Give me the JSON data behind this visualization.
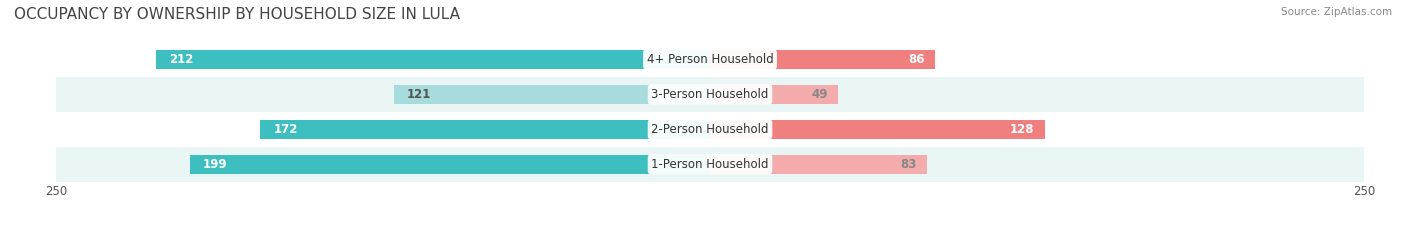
{
  "title": "OCCUPANCY BY OWNERSHIP BY HOUSEHOLD SIZE IN LULA",
  "source": "Source: ZipAtlas.com",
  "categories": [
    "1-Person Household",
    "2-Person Household",
    "3-Person Household",
    "4+ Person Household"
  ],
  "owner_values": [
    199,
    172,
    121,
    212
  ],
  "renter_values": [
    83,
    128,
    49,
    86
  ],
  "owner_color": "#3DBFBF",
  "renter_color": "#F08080",
  "owner_light_color": "#A8DCDC",
  "renter_light_color": "#F4ABAB",
  "axis_max": 250,
  "bar_height": 0.55,
  "bg_color": "#ffffff",
  "row_bg_colors": [
    "#e8f4f4",
    "#e8f4f4",
    "#f0f0f0",
    "#e8f4f4"
  ],
  "title_fontsize": 11,
  "label_fontsize": 8.5,
  "tick_fontsize": 8.5,
  "legend_fontsize": 8.5,
  "source_fontsize": 7.5
}
